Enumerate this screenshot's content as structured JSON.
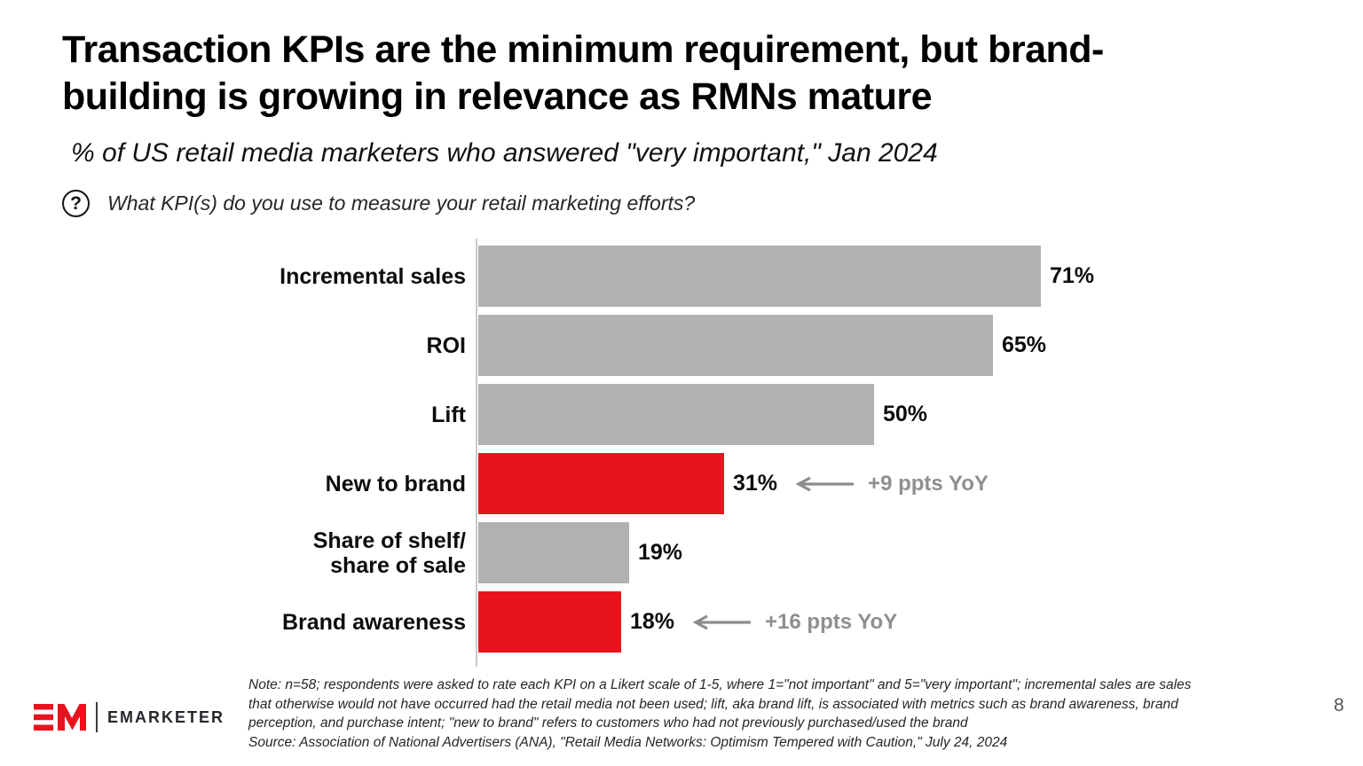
{
  "slide": {
    "title_lines": [
      "Transaction KPIs are the minimum requirement, but brand-",
      "building is growing in relevance as RMNs mature"
    ],
    "subtitle": "% of US retail media marketers who answered \"very important,\" Jan 2024",
    "question_icon": "?",
    "question": "What KPI(s) do you use to measure your retail marketing efforts?",
    "page_number": "8",
    "logo_text": "EMARKETER"
  },
  "chart_data": {
    "type": "bar",
    "orientation": "horizontal",
    "title": "% of US retail media marketers who answered \"very important,\" Jan 2024",
    "unit": "%",
    "categories": [
      "Incremental sales",
      "ROI",
      "Lift",
      "New to brand",
      "Share of shelf/\nshare of sale",
      "Brand awareness"
    ],
    "values": [
      71,
      65,
      50,
      31,
      19,
      18
    ],
    "value_labels": [
      "71%",
      "65%",
      "50%",
      "31%",
      "19%",
      "18%"
    ],
    "highlighted": [
      false,
      false,
      false,
      true,
      false,
      true
    ],
    "annotations": [
      {
        "index": 3,
        "text": "+9 ppts YoY"
      },
      {
        "index": 5,
        "text": "+16 ppts YoY"
      }
    ],
    "xlim": [
      0,
      71
    ],
    "grid": false,
    "legend": false,
    "colors": {
      "bar_default": "#b1b1b1",
      "bar_highlight": "#e8131d",
      "annotation_text": "#8f8f8f",
      "annotation_arrow": "#8c8c8c",
      "value_label": "#0d0d0d",
      "axis_line": "#c9c9c9"
    }
  },
  "footer": {
    "note_lines": [
      "Note: n=58; respondents were asked to rate each KPI on a Likert scale of 1-5, where 1=\"not important\" and 5=\"very important\"; incremental sales are sales",
      "that otherwise would not have occurred had the retail media not been used; lift, aka brand lift, is associated with metrics such as brand awareness, brand",
      "perception, and purchase intent; \"new to brand\" refers to customers who had not previously purchased/used the brand",
      "Source: Association of National Advertisers (ANA), \"Retail Media Networks: Optimism Tempered with Caution,\" July 24, 2024"
    ]
  }
}
